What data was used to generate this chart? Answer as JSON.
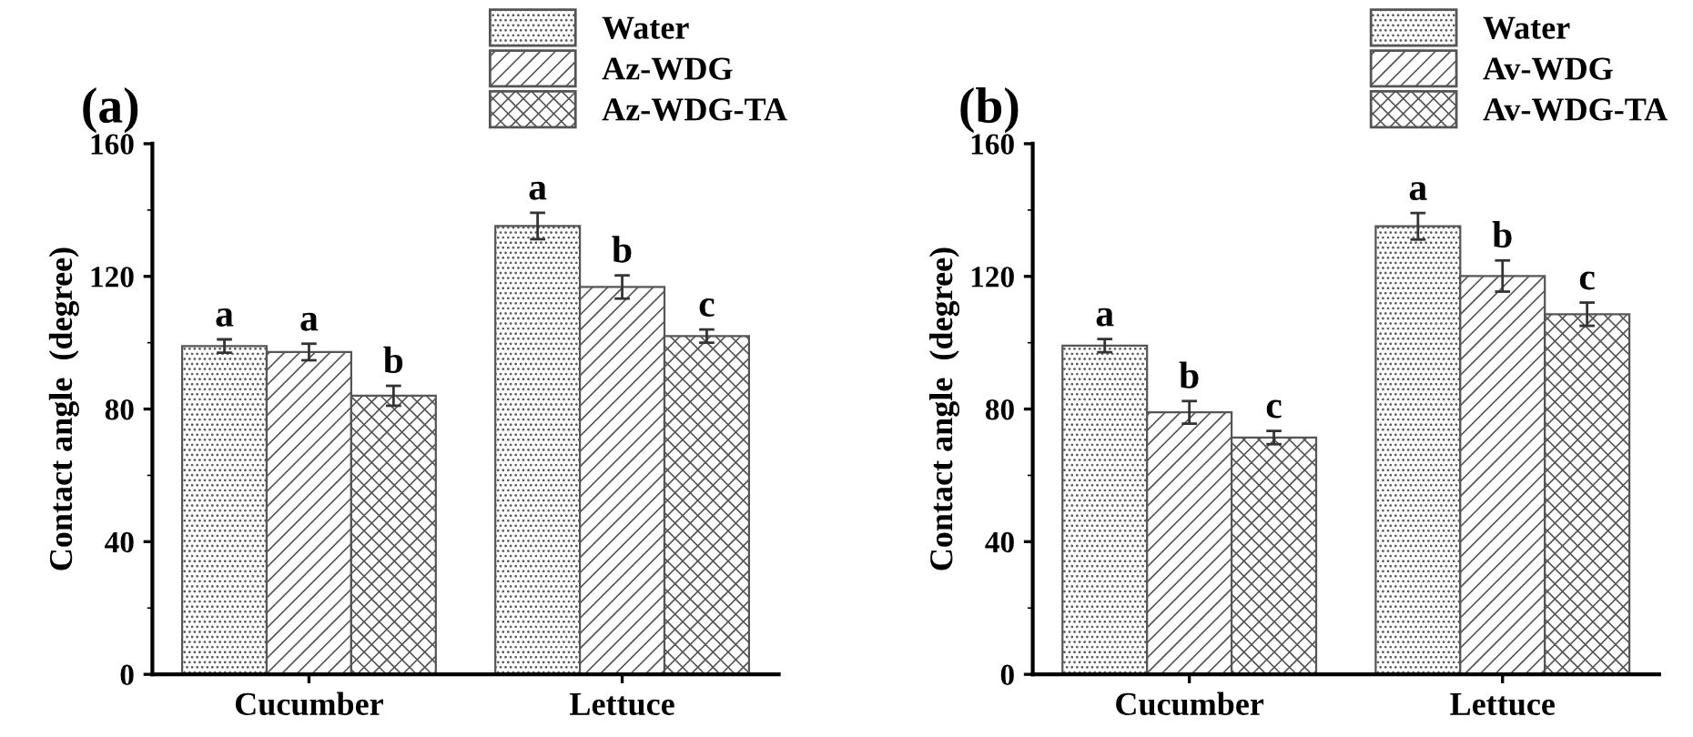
{
  "chart_data": [
    {
      "type": "bar",
      "title": "(a)",
      "ylabel": "Contact angle  (degree)",
      "categories": [
        "Cucumber",
        "Lettuce"
      ],
      "ylim": [
        0,
        160
      ],
      "yticks": [
        0,
        40,
        80,
        120,
        160
      ],
      "grid": false,
      "legend": "top right",
      "series": [
        {
          "name": "Water",
          "color": "#555555",
          "values": [
            99.0,
            135.2
          ],
          "errors": [
            2,
            4
          ],
          "value_labels": [
            "a",
            "a"
          ]
        },
        {
          "name": "Az-WDG",
          "color": "#555555",
          "values": [
            97.2,
            116.8
          ],
          "errors": [
            2.5,
            3.5
          ],
          "value_labels": [
            "a",
            "b"
          ]
        },
        {
          "name": "Az-WDG-TA",
          "color": "#555555",
          "values": [
            84.0,
            102.0
          ],
          "errors": [
            3,
            2
          ],
          "value_labels": [
            "b",
            "c"
          ]
        }
      ]
    },
    {
      "type": "bar",
      "title": "(b)",
      "ylabel": "Contact angle  (degree)",
      "categories": [
        "Cucumber",
        "Lettuce"
      ],
      "ylim": [
        0,
        160
      ],
      "yticks": [
        0,
        40,
        80,
        120,
        160
      ],
      "grid": false,
      "legend": "top right",
      "series": [
        {
          "name": "Water",
          "color": "#555555",
          "values": [
            99.1,
            135.1
          ],
          "errors": [
            2,
            4
          ],
          "value_labels": [
            "a",
            "a"
          ]
        },
        {
          "name": "Av-WDG",
          "color": "#555555",
          "values": [
            79.0,
            120.1
          ],
          "errors": [
            3.4,
            4.7
          ],
          "value_labels": [
            "b",
            "b"
          ]
        },
        {
          "name": "Av-WDG-TA",
          "color": "#555555",
          "values": [
            71.4,
            108.6
          ],
          "errors": [
            2,
            3.5
          ],
          "value_labels": [
            "c",
            "c"
          ]
        }
      ]
    }
  ]
}
